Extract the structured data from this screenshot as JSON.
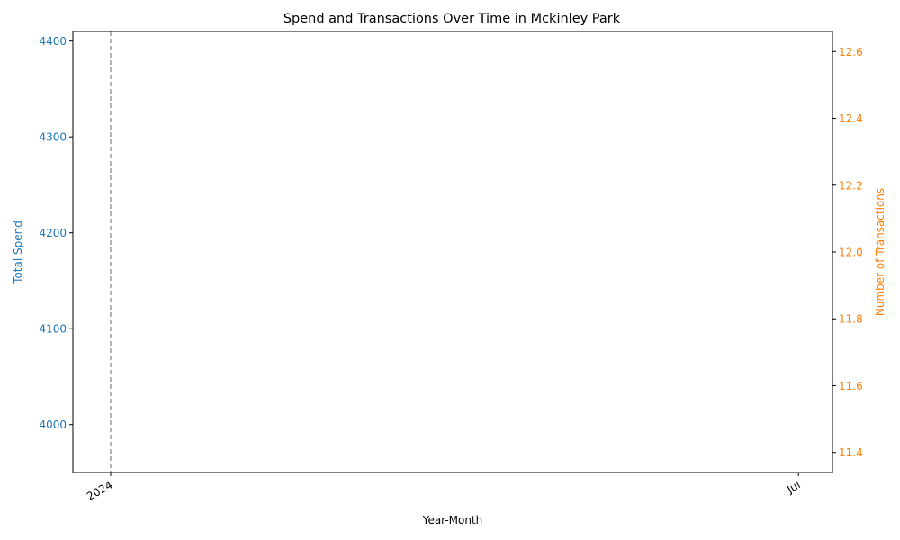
{
  "chart_data": {
    "type": "line",
    "title": "Spend and Transactions Over Time in Mckinley Park",
    "xlabel": "Year-Month",
    "x_ticks": [
      "2024",
      "Jul"
    ],
    "xlim": [
      "2023-12-22",
      "2024-07-10"
    ],
    "marker_date": "2024-01-01",
    "left_axis": {
      "label": "Total Spend",
      "color": "#1f77b4",
      "ticks": [
        4000,
        4100,
        4200,
        4300,
        4400
      ],
      "ylim": [
        3950,
        4410
      ]
    },
    "right_axis": {
      "label": "Number of Transactions",
      "color": "#ff7f0e",
      "ticks": [
        "11.4",
        "11.6",
        "11.8",
        "12.0",
        "12.2",
        "12.4",
        "12.6"
      ],
      "ylim": [
        11.34,
        12.66
      ]
    },
    "series": [
      {
        "values": []
      },
      {
        "values": []
      }
    ],
    "grid": false
  }
}
